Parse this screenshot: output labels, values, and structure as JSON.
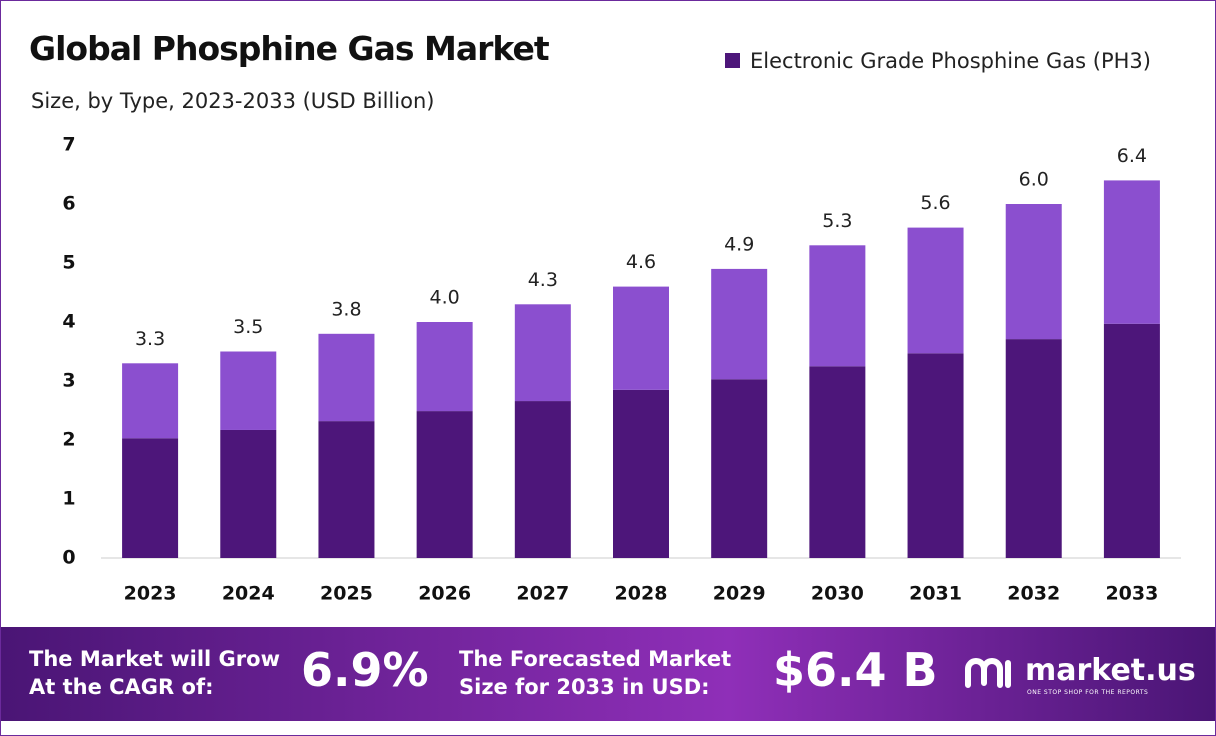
{
  "chart_data": {
    "type": "stacked_bar",
    "title": "Global Phosphine Gas Market",
    "subtitle": "Size, by Type, 2023-2033 (USD Billion)",
    "categories": [
      "2023",
      "2024",
      "2025",
      "2026",
      "2027",
      "2028",
      "2029",
      "2030",
      "2031",
      "2032",
      "2033"
    ],
    "series": [
      {
        "name": "Electronic Grade Phosphine Gas (PH3)",
        "color": "#4d167a",
        "values": [
          2.03,
          2.17,
          2.32,
          2.49,
          2.66,
          2.85,
          3.03,
          3.25,
          3.47,
          3.71,
          3.97
        ]
      },
      {
        "color": "#8b4fcf",
        "values": [
          1.27,
          1.33,
          1.48,
          1.51,
          1.64,
          1.75,
          1.87,
          2.05,
          2.13,
          2.29,
          2.43
        ]
      }
    ],
    "totals": [
      3.3,
      3.5,
      3.8,
      4.0,
      4.3,
      4.6,
      4.9,
      5.3,
      5.6,
      6.0,
      6.4
    ],
    "value_labels": [
      "3.3",
      "3.5",
      "3.8",
      "4.0",
      "4.3",
      "4.6",
      "4.9",
      "5.3",
      "5.6",
      "6.0",
      "6.4"
    ],
    "ylim": [
      0,
      7
    ],
    "yticks": [
      0,
      1,
      2,
      3,
      4,
      5,
      6,
      7
    ],
    "grid": false,
    "legend": "top-right"
  },
  "footer": {
    "cagr_label": [
      "The Market will Grow",
      "At the CAGR of:"
    ],
    "cagr": "6.9%",
    "forecast_label": [
      "The Forecasted Market",
      "Size for 2033 in USD:"
    ],
    "forecast": "$6.4 B",
    "brand": "market.us",
    "tagline": "ONE STOP SHOP FOR THE REPORTS"
  }
}
